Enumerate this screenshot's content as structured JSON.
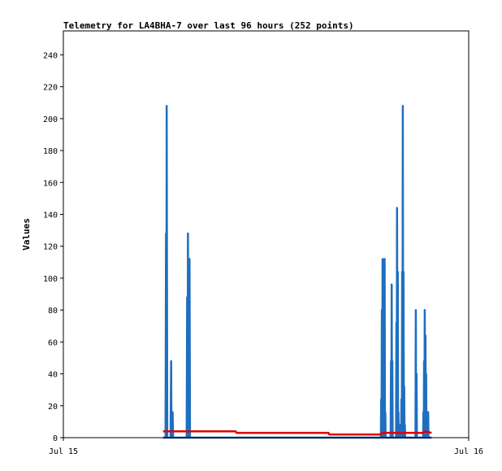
{
  "chart_data": {
    "type": "line",
    "title": "Telemetry for LA4BHA-7 over last 96 hours (252 points)",
    "xlabel": "",
    "ylabel": "Values",
    "x_ticks": [
      "Jul 15",
      "Jul 16"
    ],
    "xlim": [
      0,
      24
    ],
    "ylim": [
      0,
      255
    ],
    "y_ticks": [
      0,
      20,
      40,
      60,
      80,
      100,
      120,
      140,
      160,
      180,
      200,
      220,
      240
    ],
    "grid": false,
    "series": [
      {
        "color": "#1f6fc0",
        "points": [
          [
            5.9,
            0
          ],
          [
            6.05,
            0
          ],
          [
            6.08,
            128
          ],
          [
            6.1,
            0
          ],
          [
            6.12,
            208
          ],
          [
            6.15,
            0
          ],
          [
            6.35,
            0
          ],
          [
            6.38,
            48
          ],
          [
            6.4,
            0
          ],
          [
            6.45,
            0
          ],
          [
            6.47,
            16
          ],
          [
            6.5,
            0
          ],
          [
            7.3,
            0
          ],
          [
            7.33,
            88
          ],
          [
            7.36,
            0
          ],
          [
            7.38,
            128
          ],
          [
            7.4,
            0
          ],
          [
            7.45,
            0
          ],
          [
            7.47,
            112
          ],
          [
            7.5,
            0
          ],
          [
            18.8,
            0
          ],
          [
            18.82,
            24
          ],
          [
            18.84,
            0
          ],
          [
            18.86,
            80
          ],
          [
            18.88,
            0
          ],
          [
            18.9,
            112
          ],
          [
            18.92,
            0
          ],
          [
            18.94,
            96
          ],
          [
            18.96,
            0
          ],
          [
            18.98,
            80
          ],
          [
            19.0,
            0
          ],
          [
            19.02,
            112
          ],
          [
            19.04,
            0
          ],
          [
            19.06,
            16
          ],
          [
            19.08,
            0
          ],
          [
            19.38,
            0
          ],
          [
            19.4,
            48
          ],
          [
            19.42,
            0
          ],
          [
            19.44,
            96
          ],
          [
            19.46,
            0
          ],
          [
            19.48,
            48
          ],
          [
            19.5,
            0
          ],
          [
            19.7,
            0
          ],
          [
            19.72,
            72
          ],
          [
            19.74,
            0
          ],
          [
            19.76,
            144
          ],
          [
            19.78,
            0
          ],
          [
            19.8,
            104
          ],
          [
            19.82,
            0
          ],
          [
            19.84,
            16
          ],
          [
            19.86,
            0
          ],
          [
            19.9,
            8
          ],
          [
            19.92,
            0
          ],
          [
            20.0,
            0
          ],
          [
            20.02,
            24
          ],
          [
            20.04,
            0
          ],
          [
            20.06,
            104
          ],
          [
            20.08,
            0
          ],
          [
            20.1,
            208
          ],
          [
            20.12,
            0
          ],
          [
            20.14,
            104
          ],
          [
            20.16,
            0
          ],
          [
            20.18,
            32
          ],
          [
            20.2,
            0
          ],
          [
            20.22,
            8
          ],
          [
            20.24,
            0
          ],
          [
            20.85,
            0
          ],
          [
            20.87,
            80
          ],
          [
            20.89,
            0
          ],
          [
            20.91,
            40
          ],
          [
            20.93,
            0
          ],
          [
            21.3,
            0
          ],
          [
            21.32,
            16
          ],
          [
            21.34,
            0
          ],
          [
            21.36,
            48
          ],
          [
            21.38,
            0
          ],
          [
            21.4,
            80
          ],
          [
            21.42,
            0
          ],
          [
            21.44,
            64
          ],
          [
            21.46,
            0
          ],
          [
            21.48,
            40
          ],
          [
            21.5,
            0
          ],
          [
            21.54,
            8
          ],
          [
            21.56,
            0
          ],
          [
            21.6,
            16
          ],
          [
            21.62,
            0
          ],
          [
            21.8,
            0
          ]
        ]
      },
      {
        "color": "#e00000",
        "points": [
          [
            5.9,
            4
          ],
          [
            10.2,
            4
          ],
          [
            10.25,
            3
          ],
          [
            15.7,
            3
          ],
          [
            15.75,
            2
          ],
          [
            18.8,
            2
          ],
          [
            18.85,
            3
          ],
          [
            21.3,
            3
          ],
          [
            21.4,
            4
          ],
          [
            21.8,
            3
          ]
        ]
      },
      {
        "color": "#000000",
        "points": [
          [
            5.9,
            0
          ],
          [
            21.8,
            0
          ]
        ]
      }
    ]
  }
}
